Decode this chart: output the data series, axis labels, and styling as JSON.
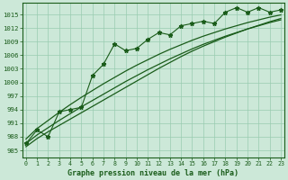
{
  "xlabel": "Graphe pression niveau de la mer (hPa)",
  "background_color": "#cce8d8",
  "plot_bg_color": "#cce8d8",
  "line_color": "#1a5c1a",
  "grid_color": "#99ccb0",
  "x_ticks": [
    0,
    1,
    2,
    3,
    4,
    5,
    6,
    7,
    8,
    9,
    10,
    11,
    12,
    13,
    14,
    15,
    16,
    17,
    18,
    19,
    20,
    21,
    22,
    23
  ],
  "y_ticks": [
    985,
    988,
    991,
    994,
    997,
    1000,
    1003,
    1006,
    1009,
    1012,
    1015
  ],
  "ylim": [
    983.5,
    1017.5
  ],
  "xlim": [
    -0.3,
    23.3
  ],
  "main_values": [
    986.5,
    989.5,
    988.0,
    993.5,
    994.0,
    994.5,
    1001.5,
    1004.0,
    1008.5,
    1007.0,
    1007.5,
    1009.5,
    1011.0,
    1010.5,
    1012.5,
    1013.0,
    1013.5,
    1013.0,
    1015.5,
    1016.5,
    1015.5,
    1016.5,
    1015.5,
    1016.0
  ],
  "line1": [
    985.8,
    987.6,
    989.1,
    990.5,
    991.9,
    993.3,
    994.7,
    996.1,
    997.5,
    998.9,
    1000.3,
    1001.7,
    1003.1,
    1004.4,
    1005.7,
    1006.9,
    1008.0,
    1009.0,
    1010.0,
    1010.9,
    1011.8,
    1012.6,
    1013.4,
    1014.1
  ],
  "line2": [
    986.5,
    988.4,
    990.0,
    991.6,
    993.1,
    994.6,
    996.0,
    997.4,
    998.8,
    1000.2,
    1001.5,
    1002.8,
    1004.0,
    1005.2,
    1006.3,
    1007.4,
    1008.4,
    1009.3,
    1010.2,
    1011.0,
    1011.8,
    1012.5,
    1013.2,
    1013.8
  ],
  "line3": [
    987.5,
    989.8,
    991.6,
    993.4,
    995.1,
    996.7,
    998.2,
    999.7,
    1001.1,
    1002.5,
    1003.8,
    1005.0,
    1006.2,
    1007.3,
    1008.3,
    1009.3,
    1010.2,
    1011.0,
    1011.8,
    1012.5,
    1013.2,
    1013.8,
    1014.4,
    1014.9
  ]
}
